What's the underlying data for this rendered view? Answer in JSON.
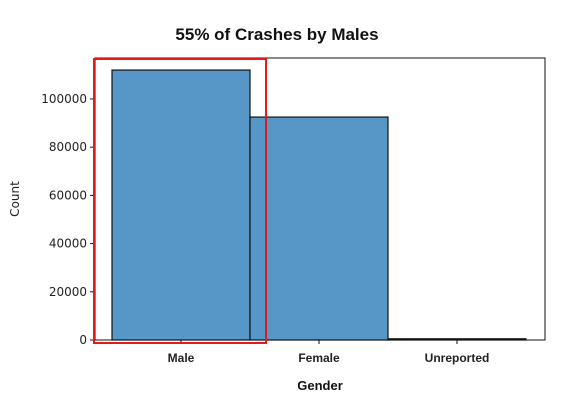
{
  "chart_data": {
    "type": "bar",
    "title": "55% of Crashes by Males",
    "xlabel": "Gender",
    "ylabel": "Count",
    "categories": [
      "Male",
      "Female",
      "Unreported"
    ],
    "values": [
      112000,
      92500,
      500
    ],
    "ylim": [
      0,
      117000
    ],
    "yticks": [
      0,
      20000,
      40000,
      60000,
      80000,
      100000
    ],
    "ytick_labels": [
      "0",
      "20000",
      "40000",
      "60000",
      "80000",
      "100000"
    ],
    "grid": false,
    "bar_color": "#5697c7",
    "bar_edge_color": "#111111",
    "highlight": {
      "category": "Male",
      "color": "#e01b1b"
    }
  }
}
